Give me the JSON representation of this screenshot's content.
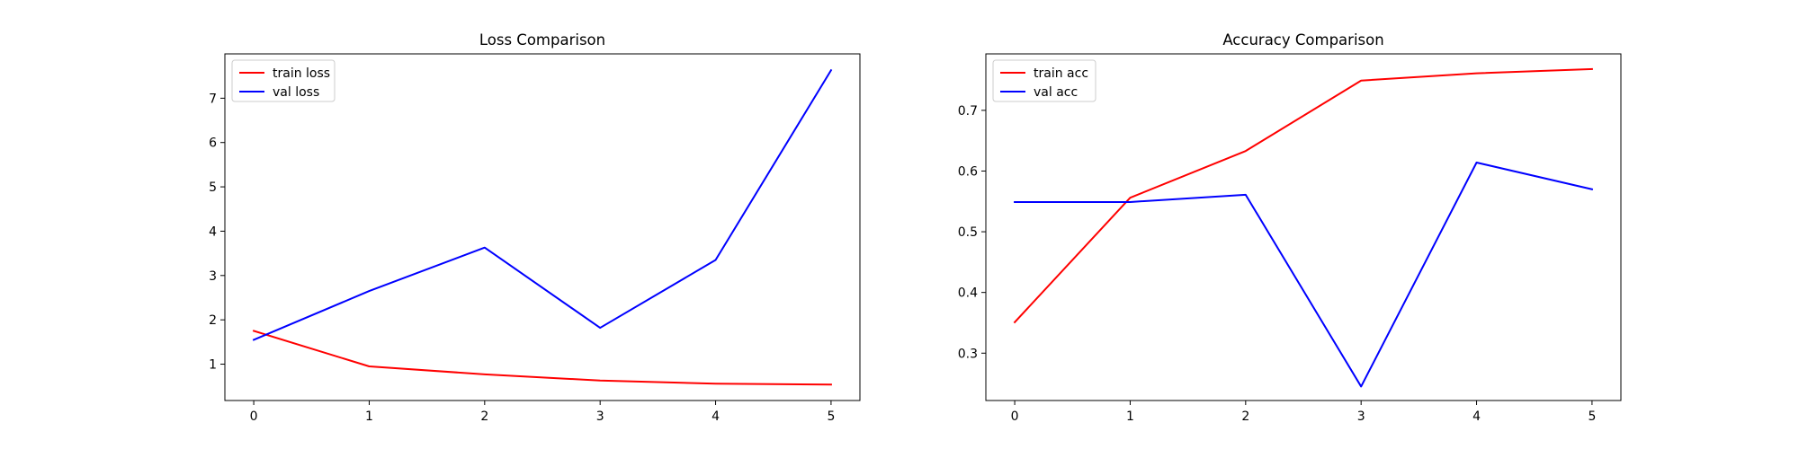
{
  "chart_data": [
    {
      "type": "line",
      "title": "Loss Comparison",
      "xlabel": "",
      "ylabel": "",
      "x": [
        0,
        1,
        2,
        3,
        4,
        5
      ],
      "series": [
        {
          "name": "train loss",
          "color": "#ff0000",
          "values": [
            1.75,
            0.95,
            0.77,
            0.63,
            0.56,
            0.54
          ]
        },
        {
          "name": "val loss",
          "color": "#0000ff",
          "values": [
            1.55,
            2.65,
            3.63,
            1.82,
            3.35,
            7.63
          ]
        }
      ],
      "xlim": [
        -0.25,
        5.25
      ],
      "ylim": [
        0.18,
        8.0
      ],
      "xticks": [
        0,
        1,
        2,
        3,
        4,
        5
      ],
      "yticks": [
        1,
        2,
        3,
        4,
        5,
        6,
        7
      ],
      "grid": false,
      "legend_position": "upper-left"
    },
    {
      "type": "line",
      "title": "Accuracy Comparison",
      "xlabel": "",
      "ylabel": "",
      "x": [
        0,
        1,
        2,
        3,
        4,
        5
      ],
      "series": [
        {
          "name": "train acc",
          "color": "#ff0000",
          "values": [
            0.351,
            0.556,
            0.633,
            0.749,
            0.761,
            0.768
          ]
        },
        {
          "name": "val acc",
          "color": "#0000ff",
          "values": [
            0.549,
            0.549,
            0.561,
            0.245,
            0.614,
            0.57
          ]
        }
      ],
      "xlim": [
        -0.25,
        5.25
      ],
      "ylim": [
        0.222,
        0.793
      ],
      "xticks": [
        0,
        1,
        2,
        3,
        4,
        5
      ],
      "yticks": [
        0.3,
        0.4,
        0.5,
        0.6,
        0.7
      ],
      "grid": false,
      "legend_position": "upper-left"
    }
  ]
}
